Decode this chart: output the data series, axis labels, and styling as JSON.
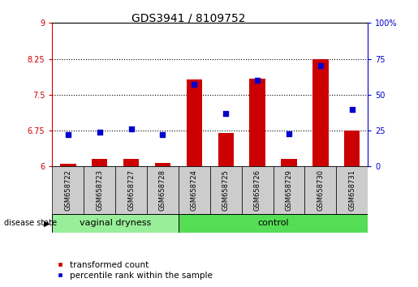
{
  "title": "GDS3941 / 8109752",
  "samples": [
    "GSM658722",
    "GSM658723",
    "GSM658727",
    "GSM658728",
    "GSM658724",
    "GSM658725",
    "GSM658726",
    "GSM658729",
    "GSM658730",
    "GSM658731"
  ],
  "groups": [
    "vaginal dryness",
    "vaginal dryness",
    "vaginal dryness",
    "vaginal dryness",
    "control",
    "control",
    "control",
    "control",
    "control",
    "control"
  ],
  "group_boundary": 4,
  "red_values": [
    6.05,
    6.15,
    6.15,
    6.08,
    7.82,
    6.7,
    7.83,
    6.15,
    8.25,
    6.75
  ],
  "blue_values_pct": [
    22,
    24,
    26,
    22,
    57,
    37,
    60,
    23,
    70,
    40
  ],
  "ylim_left": [
    6.0,
    9.0
  ],
  "ylim_right": [
    0,
    100
  ],
  "yticks_left": [
    6.0,
    6.75,
    7.5,
    8.25,
    9.0
  ],
  "yticks_right": [
    0,
    25,
    50,
    75,
    100
  ],
  "ytick_labels_left": [
    "6",
    "6.75",
    "7.5",
    "8.25",
    "9"
  ],
  "ytick_labels_right": [
    "0",
    "25",
    "50",
    "75",
    "100%"
  ],
  "hlines": [
    6.75,
    7.5,
    8.25
  ],
  "left_axis_color": "#cc0000",
  "right_axis_color": "#0000cc",
  "bar_color": "#cc0000",
  "dot_color": "#0000cc",
  "group_label": "disease state",
  "legend_items": [
    "transformed count",
    "percentile rank within the sample"
  ],
  "plot_bg": "#ffffff",
  "sample_box_color": "#cccccc",
  "vaginal_color": "#99ee99",
  "control_color": "#55dd55",
  "bar_width": 0.5,
  "title_fontsize": 10,
  "tick_fontsize": 7,
  "sample_fontsize": 6,
  "group_fontsize": 8,
  "legend_fontsize": 7.5
}
